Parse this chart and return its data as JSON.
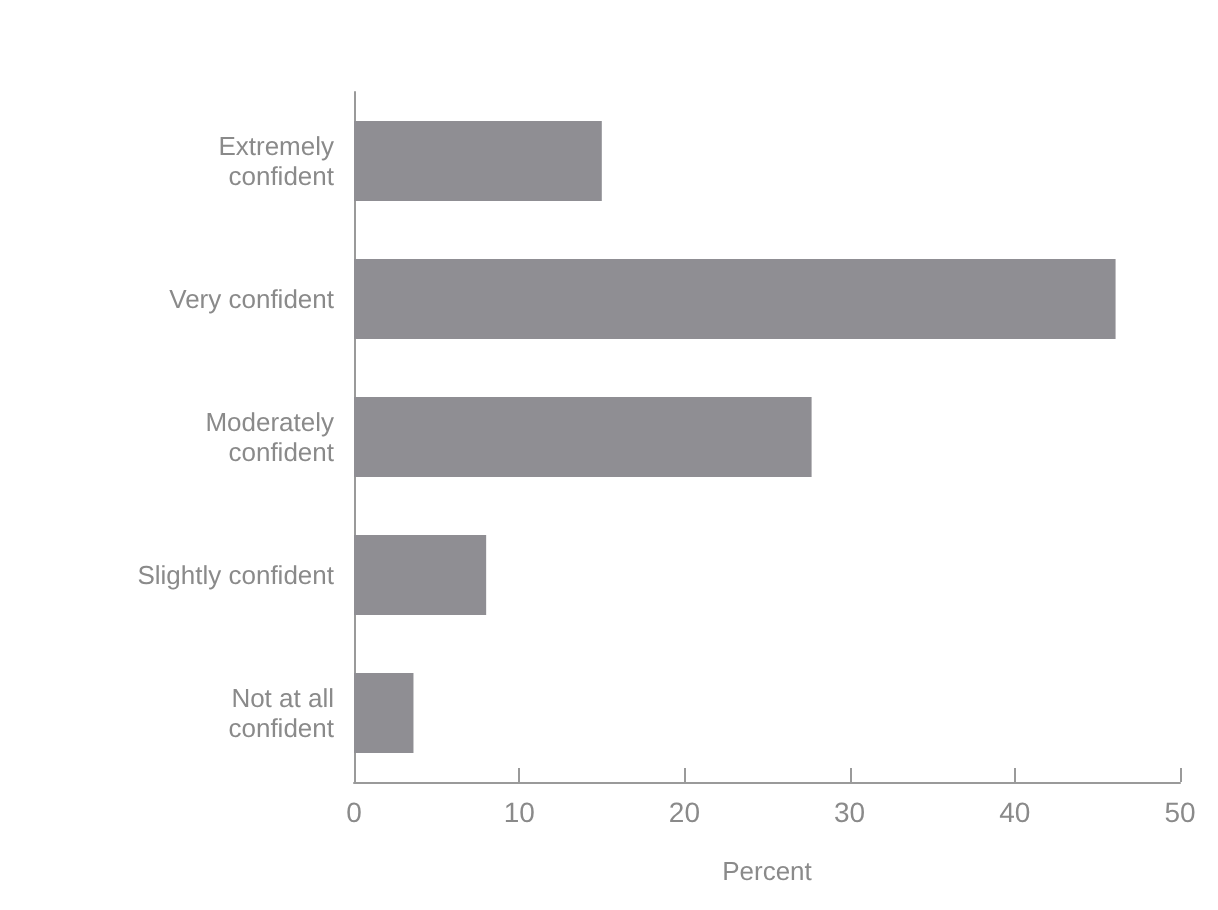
{
  "chart_data": {
    "type": "bar",
    "orientation": "horizontal",
    "xlabel": "Percent",
    "categories": [
      "Extremely\nconfident",
      "Very confident",
      "Moderately\nconfident",
      "Slightly confident",
      "Not at all\nconfident"
    ],
    "values": [
      15,
      46.1,
      27.7,
      8,
      3.6
    ],
    "color": "#8f8e93",
    "xlim": [
      0,
      50
    ],
    "xticks": [
      0,
      10,
      20,
      30,
      40,
      50
    ],
    "grid": false
  }
}
